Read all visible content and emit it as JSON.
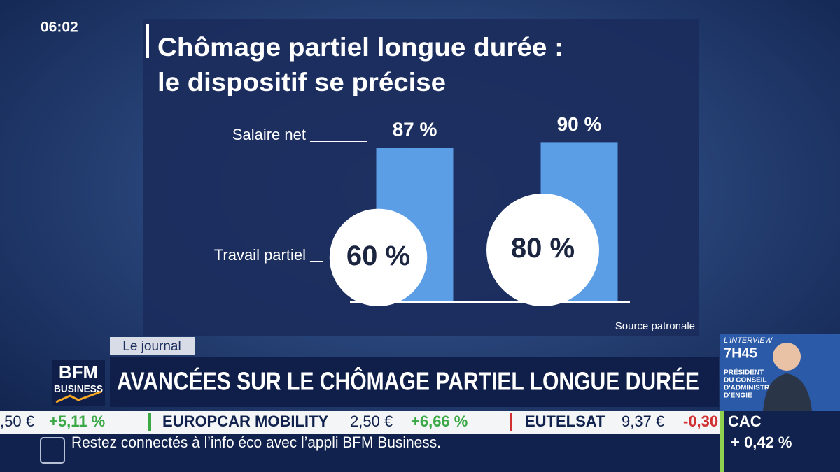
{
  "clock": "06:02",
  "chart_data": {
    "type": "bar",
    "title": "Chômage partiel longue durée :",
    "subtitle": "le dispositif se précise",
    "categories": [
      null,
      null
    ],
    "series": [
      {
        "name": "Salaire net",
        "color": "#5b9ee6",
        "values": [
          87,
          90
        ],
        "value_labels": [
          "87 %",
          "90 %"
        ]
      },
      {
        "name": "Travail partiel",
        "color": "#ffffff",
        "values": [
          60,
          80
        ],
        "value_labels": [
          "60 %",
          "80 %"
        ]
      }
    ],
    "ylim": [
      0,
      100
    ],
    "source": "Source patronale"
  },
  "tag": "Le journal",
  "headline": "AVANCÉES SUR LE CHÔMAGE PARTIEL LONGUE DURÉE",
  "logo": {
    "line1": "BFM",
    "line2": "BUSINESS"
  },
  "interview": {
    "label": "L'INTERVIEW",
    "time": "7H45",
    "lines": [
      "PRÉSIDENT",
      "DU CONSEIL",
      "D'ADMINISTRATION",
      "D'ENGIE"
    ]
  },
  "ticker": [
    ",50 €",
    "+5,11 %",
    "EUROPCAR MOBILITY",
    "2,50 €",
    "+6,66 %",
    "EUTELSAT",
    "9,37 €",
    "-0,30"
  ],
  "index": {
    "name": "CAC",
    "change": "+ 0,42 %"
  },
  "footer": "Restez connectés à l’info éco avec l’appli BFM Business."
}
